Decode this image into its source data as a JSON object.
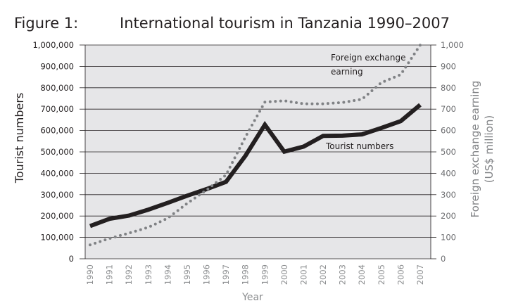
{
  "figure": {
    "label": "Figure 1:",
    "title": "International tourism in Tanzania 1990–2007"
  },
  "colors": {
    "plot_background": "#e6e6e8",
    "tourist_line": "#231f20",
    "exchange_line": "#808285",
    "grid": "#231f20"
  },
  "chart_data": {
    "type": "line",
    "title": "International tourism in Tanzania 1990–2007",
    "xlabel": "Year",
    "ylabel_left": "Tourist numbers",
    "ylabel_right": [
      "Foreign exchange earning",
      "(US$ million)"
    ],
    "x": [
      "1990",
      "1991",
      "1992",
      "1993",
      "1994",
      "1995",
      "1996",
      "1997",
      "1998",
      "1999",
      "2000",
      "2001",
      "2002",
      "2003",
      "2004",
      "2005",
      "2006",
      "2007"
    ],
    "ylim_left": [
      0,
      1000000
    ],
    "ylim_right": [
      0,
      1000
    ],
    "left_ticks": [
      "0",
      "100,000",
      "200,000",
      "300,000",
      "400,000",
      "500,000",
      "600,000",
      "700,000",
      "800,000",
      "900,000",
      "1,000,000"
    ],
    "right_ticks": [
      "0",
      "100",
      "200",
      "300",
      "400",
      "500",
      "600",
      "700",
      "800",
      "900",
      "1,000"
    ],
    "grid": true,
    "series": [
      {
        "name": "Tourist numbers",
        "axis": "left",
        "style": "solid",
        "values": [
          153000,
          187000,
          202000,
          230000,
          262000,
          295000,
          326000,
          360000,
          482000,
          627000,
          501000,
          525000,
          575000,
          576000,
          582000,
          612000,
          644000,
          720000
        ]
      },
      {
        "name": "Foreign exchange earning",
        "axis": "right",
        "style": "dotted",
        "values": [
          65,
          95,
          120,
          147,
          190,
          259,
          322,
          392,
          570,
          733,
          739,
          725,
          725,
          731,
          746,
          824,
          862,
          1000
        ]
      }
    ],
    "annotations": [
      {
        "lines": [
          "Foreign exchange",
          "earning"
        ],
        "series": "Foreign exchange earning"
      },
      {
        "lines": [
          "Tourist numbers"
        ],
        "series": "Tourist numbers"
      }
    ]
  }
}
